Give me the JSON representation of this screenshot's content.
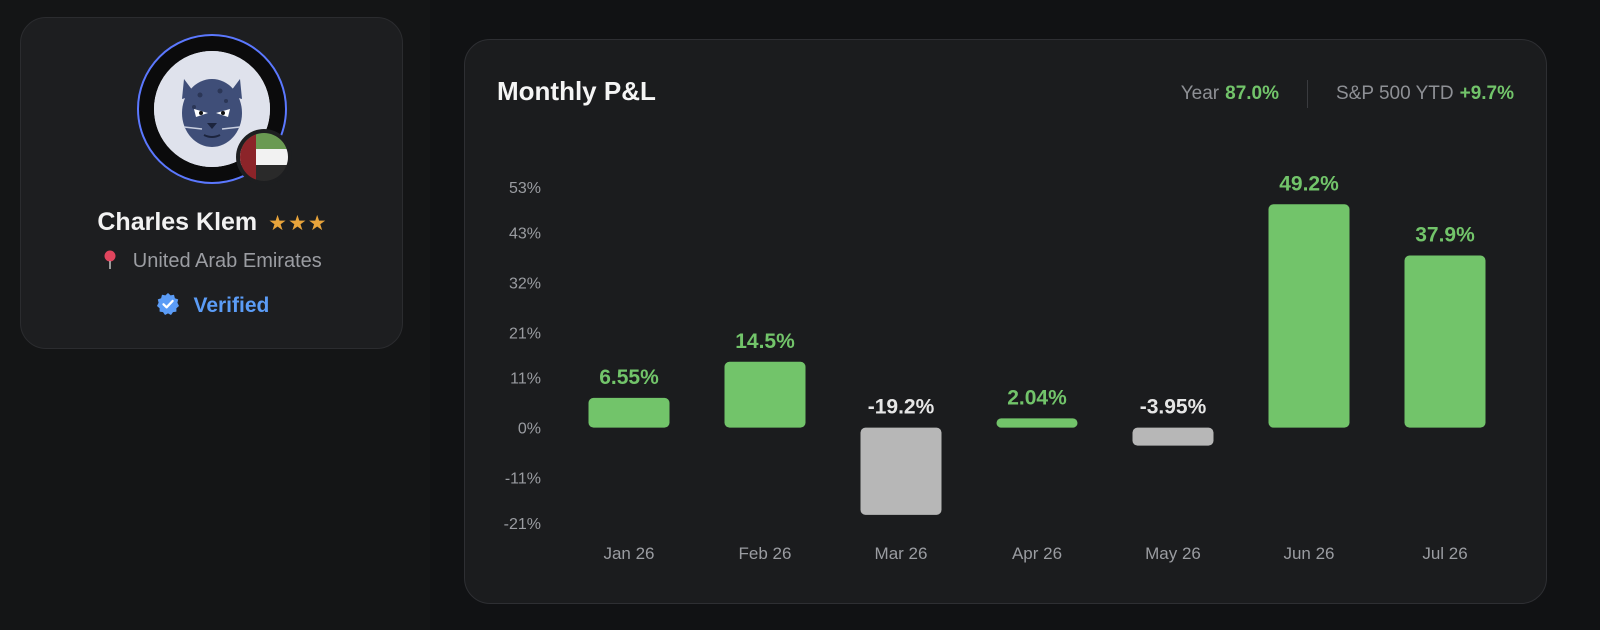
{
  "profile": {
    "name": "Charles Klem",
    "stars": "★★★",
    "location": "United Arab Emirates",
    "verified_label": "Verified",
    "flag": "uae-flag-icon",
    "avatar": "cat-avatar-icon"
  },
  "pnl": {
    "title": "Monthly P&L",
    "year_label": "Year",
    "year_value": "87.0%",
    "sp_label": "S&P 500 YTD",
    "sp_value": "+9.7%"
  },
  "colors": {
    "positive": "#72c46a",
    "negative_bar": "#b7b7b7",
    "verified": "#5b9cf6",
    "stars": "#e8a43b"
  },
  "chart_data": {
    "type": "bar",
    "title": "",
    "xlabel": "",
    "ylabel": "",
    "categories": [
      "Jan 26",
      "Feb 26",
      "Mar 26",
      "Apr 26",
      "May 26",
      "Jun 26",
      "Jul 26"
    ],
    "values": [
      6.55,
      14.5,
      -19.2,
      2.04,
      -3.95,
      49.2,
      37.9
    ],
    "value_labels": [
      "6.55%",
      "14.5%",
      "-19.2%",
      "2.04%",
      "-3.95%",
      "49.2%",
      "37.9%"
    ],
    "yticks": [
      53,
      43,
      32,
      21,
      11,
      0,
      -11,
      -21
    ],
    "ytick_labels": [
      "53%",
      "43%",
      "32%",
      "21%",
      "11%",
      "0%",
      "-11%",
      "-21%"
    ],
    "ylim": [
      -21,
      53
    ],
    "grid": false,
    "legend": "none"
  }
}
